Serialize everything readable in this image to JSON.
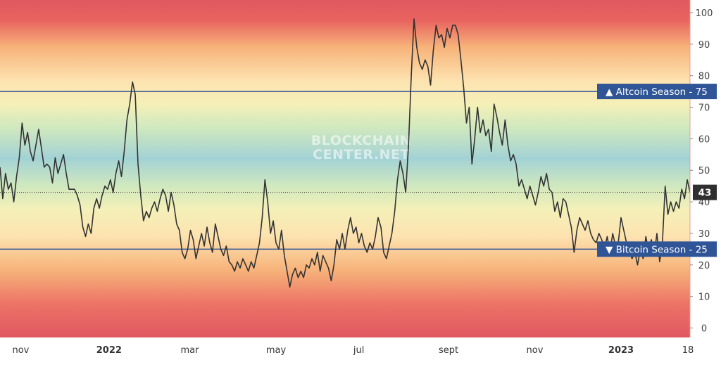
{
  "chart_data": {
    "type": "line",
    "ylim": [
      -3,
      104
    ],
    "y_ticks": [
      0,
      10,
      20,
      30,
      40,
      50,
      60,
      70,
      80,
      90,
      100
    ],
    "x_labels": [
      {
        "text": "nov",
        "t": 0.03,
        "bold": false
      },
      {
        "text": "2022",
        "t": 0.158,
        "bold": true
      },
      {
        "text": "mar",
        "t": 0.275,
        "bold": false
      },
      {
        "text": "may",
        "t": 0.4,
        "bold": false
      },
      {
        "text": "jul",
        "t": 0.52,
        "bold": false
      },
      {
        "text": "sept",
        "t": 0.65,
        "bold": false
      },
      {
        "text": "nov",
        "t": 0.775,
        "bold": false
      },
      {
        "text": "2023",
        "t": 0.9,
        "bold": true
      },
      {
        "text": "18",
        "t": 0.997,
        "bold": false
      }
    ],
    "grid": false,
    "thresholds": [
      {
        "label": "▲ Altcoin Season",
        "value": 75,
        "color": "#2f5597"
      },
      {
        "label": "▼ Bitcoin Season",
        "value": 25,
        "color": "#2f5597"
      }
    ],
    "current": {
      "value": 43,
      "color": "#2f2f2f"
    },
    "watermark": [
      "BLOCKCHAIN",
      "CENTER.NET"
    ],
    "series": [
      {
        "line_color": "#333333",
        "points": [
          [
            0.0,
            51
          ],
          [
            0.004,
            41
          ],
          [
            0.008,
            49
          ],
          [
            0.012,
            44
          ],
          [
            0.016,
            46
          ],
          [
            0.02,
            40
          ],
          [
            0.024,
            48
          ],
          [
            0.028,
            54
          ],
          [
            0.032,
            65
          ],
          [
            0.036,
            58
          ],
          [
            0.04,
            62
          ],
          [
            0.044,
            56
          ],
          [
            0.048,
            53
          ],
          [
            0.052,
            58
          ],
          [
            0.056,
            63
          ],
          [
            0.06,
            57
          ],
          [
            0.064,
            51
          ],
          [
            0.068,
            52
          ],
          [
            0.072,
            51
          ],
          [
            0.076,
            46
          ],
          [
            0.08,
            54
          ],
          [
            0.084,
            49
          ],
          [
            0.088,
            52
          ],
          [
            0.092,
            55
          ],
          [
            0.096,
            49
          ],
          [
            0.1,
            44
          ],
          [
            0.104,
            44
          ],
          [
            0.108,
            44
          ],
          [
            0.112,
            42
          ],
          [
            0.116,
            39
          ],
          [
            0.12,
            32
          ],
          [
            0.124,
            29
          ],
          [
            0.128,
            33
          ],
          [
            0.132,
            30
          ],
          [
            0.136,
            38
          ],
          [
            0.14,
            41
          ],
          [
            0.144,
            38
          ],
          [
            0.148,
            42
          ],
          [
            0.152,
            45
          ],
          [
            0.156,
            44
          ],
          [
            0.16,
            47
          ],
          [
            0.164,
            43
          ],
          [
            0.168,
            49
          ],
          [
            0.172,
            53
          ],
          [
            0.176,
            48
          ],
          [
            0.18,
            56
          ],
          [
            0.184,
            66
          ],
          [
            0.188,
            71
          ],
          [
            0.192,
            78
          ],
          [
            0.196,
            74
          ],
          [
            0.2,
            52
          ],
          [
            0.204,
            42
          ],
          [
            0.208,
            34
          ],
          [
            0.212,
            37
          ],
          [
            0.216,
            35
          ],
          [
            0.22,
            38
          ],
          [
            0.224,
            40
          ],
          [
            0.228,
            37
          ],
          [
            0.232,
            41
          ],
          [
            0.236,
            44
          ],
          [
            0.24,
            42
          ],
          [
            0.244,
            37
          ],
          [
            0.248,
            43
          ],
          [
            0.252,
            39
          ],
          [
            0.256,
            33
          ],
          [
            0.26,
            31
          ],
          [
            0.264,
            24
          ],
          [
            0.268,
            22
          ],
          [
            0.272,
            25
          ],
          [
            0.276,
            31
          ],
          [
            0.28,
            28
          ],
          [
            0.284,
            22
          ],
          [
            0.288,
            26
          ],
          [
            0.292,
            30
          ],
          [
            0.296,
            26
          ],
          [
            0.3,
            32
          ],
          [
            0.304,
            27
          ],
          [
            0.308,
            24
          ],
          [
            0.312,
            33
          ],
          [
            0.316,
            29
          ],
          [
            0.32,
            25
          ],
          [
            0.324,
            23
          ],
          [
            0.328,
            26
          ],
          [
            0.332,
            21
          ],
          [
            0.336,
            20
          ],
          [
            0.34,
            18
          ],
          [
            0.344,
            21
          ],
          [
            0.348,
            19
          ],
          [
            0.352,
            22
          ],
          [
            0.356,
            20
          ],
          [
            0.36,
            18
          ],
          [
            0.364,
            21
          ],
          [
            0.368,
            19
          ],
          [
            0.372,
            23
          ],
          [
            0.376,
            27
          ],
          [
            0.38,
            35
          ],
          [
            0.384,
            47
          ],
          [
            0.388,
            40
          ],
          [
            0.392,
            30
          ],
          [
            0.396,
            34
          ],
          [
            0.4,
            27
          ],
          [
            0.404,
            25
          ],
          [
            0.408,
            31
          ],
          [
            0.412,
            23
          ],
          [
            0.416,
            18
          ],
          [
            0.42,
            13
          ],
          [
            0.424,
            17
          ],
          [
            0.428,
            19
          ],
          [
            0.432,
            16
          ],
          [
            0.436,
            18
          ],
          [
            0.44,
            16
          ],
          [
            0.444,
            20
          ],
          [
            0.448,
            19
          ],
          [
            0.452,
            22
          ],
          [
            0.456,
            20
          ],
          [
            0.46,
            24
          ],
          [
            0.464,
            18
          ],
          [
            0.468,
            23
          ],
          [
            0.472,
            21
          ],
          [
            0.476,
            19
          ],
          [
            0.48,
            15
          ],
          [
            0.484,
            20
          ],
          [
            0.488,
            28
          ],
          [
            0.492,
            25
          ],
          [
            0.496,
            30
          ],
          [
            0.5,
            25
          ],
          [
            0.504,
            31
          ],
          [
            0.508,
            35
          ],
          [
            0.512,
            30
          ],
          [
            0.516,
            32
          ],
          [
            0.52,
            27
          ],
          [
            0.524,
            30
          ],
          [
            0.528,
            26
          ],
          [
            0.532,
            24
          ],
          [
            0.536,
            27
          ],
          [
            0.54,
            25
          ],
          [
            0.544,
            29
          ],
          [
            0.548,
            35
          ],
          [
            0.552,
            32
          ],
          [
            0.556,
            24
          ],
          [
            0.56,
            22
          ],
          [
            0.564,
            26
          ],
          [
            0.568,
            30
          ],
          [
            0.572,
            37
          ],
          [
            0.576,
            47
          ],
          [
            0.58,
            53
          ],
          [
            0.584,
            49
          ],
          [
            0.588,
            43
          ],
          [
            0.592,
            58
          ],
          [
            0.596,
            80
          ],
          [
            0.6,
            98
          ],
          [
            0.604,
            89
          ],
          [
            0.608,
            84
          ],
          [
            0.612,
            82
          ],
          [
            0.616,
            85
          ],
          [
            0.62,
            83
          ],
          [
            0.624,
            77
          ],
          [
            0.628,
            88
          ],
          [
            0.632,
            96
          ],
          [
            0.636,
            92
          ],
          [
            0.64,
            93
          ],
          [
            0.644,
            89
          ],
          [
            0.648,
            95
          ],
          [
            0.652,
            92
          ],
          [
            0.656,
            96
          ],
          [
            0.66,
            96
          ],
          [
            0.664,
            93
          ],
          [
            0.668,
            85
          ],
          [
            0.672,
            76
          ],
          [
            0.676,
            65
          ],
          [
            0.68,
            70
          ],
          [
            0.684,
            52
          ],
          [
            0.688,
            60
          ],
          [
            0.692,
            70
          ],
          [
            0.696,
            62
          ],
          [
            0.7,
            66
          ],
          [
            0.704,
            61
          ],
          [
            0.708,
            63
          ],
          [
            0.712,
            56
          ],
          [
            0.716,
            71
          ],
          [
            0.72,
            67
          ],
          [
            0.724,
            62
          ],
          [
            0.728,
            58
          ],
          [
            0.732,
            66
          ],
          [
            0.736,
            58
          ],
          [
            0.74,
            53
          ],
          [
            0.744,
            55
          ],
          [
            0.748,
            52
          ],
          [
            0.752,
            45
          ],
          [
            0.756,
            47
          ],
          [
            0.76,
            44
          ],
          [
            0.764,
            41
          ],
          [
            0.768,
            45
          ],
          [
            0.772,
            42
          ],
          [
            0.776,
            39
          ],
          [
            0.78,
            43
          ],
          [
            0.784,
            48
          ],
          [
            0.788,
            45
          ],
          [
            0.792,
            49
          ],
          [
            0.796,
            44
          ],
          [
            0.8,
            43
          ],
          [
            0.804,
            37
          ],
          [
            0.808,
            40
          ],
          [
            0.812,
            35
          ],
          [
            0.816,
            41
          ],
          [
            0.82,
            40
          ],
          [
            0.824,
            36
          ],
          [
            0.828,
            32
          ],
          [
            0.832,
            24
          ],
          [
            0.836,
            31
          ],
          [
            0.84,
            35
          ],
          [
            0.844,
            33
          ],
          [
            0.848,
            31
          ],
          [
            0.852,
            34
          ],
          [
            0.856,
            30
          ],
          [
            0.86,
            28
          ],
          [
            0.864,
            27
          ],
          [
            0.868,
            30
          ],
          [
            0.872,
            28
          ],
          [
            0.876,
            25
          ],
          [
            0.88,
            29
          ],
          [
            0.884,
            24
          ],
          [
            0.888,
            30
          ],
          [
            0.892,
            26
          ],
          [
            0.896,
            27
          ],
          [
            0.9,
            35
          ],
          [
            0.904,
            31
          ],
          [
            0.908,
            27
          ],
          [
            0.912,
            24
          ],
          [
            0.916,
            22
          ],
          [
            0.92,
            24
          ],
          [
            0.924,
            20
          ],
          [
            0.928,
            25
          ],
          [
            0.932,
            22
          ],
          [
            0.936,
            29
          ],
          [
            0.94,
            24
          ],
          [
            0.944,
            28
          ],
          [
            0.948,
            23
          ],
          [
            0.952,
            30
          ],
          [
            0.956,
            21
          ],
          [
            0.96,
            27
          ],
          [
            0.964,
            45
          ],
          [
            0.968,
            36
          ],
          [
            0.972,
            40
          ],
          [
            0.976,
            37
          ],
          [
            0.98,
            40
          ],
          [
            0.984,
            38
          ],
          [
            0.988,
            44
          ],
          [
            0.992,
            41
          ],
          [
            0.996,
            47
          ],
          [
            1.0,
            43
          ]
        ]
      }
    ]
  }
}
